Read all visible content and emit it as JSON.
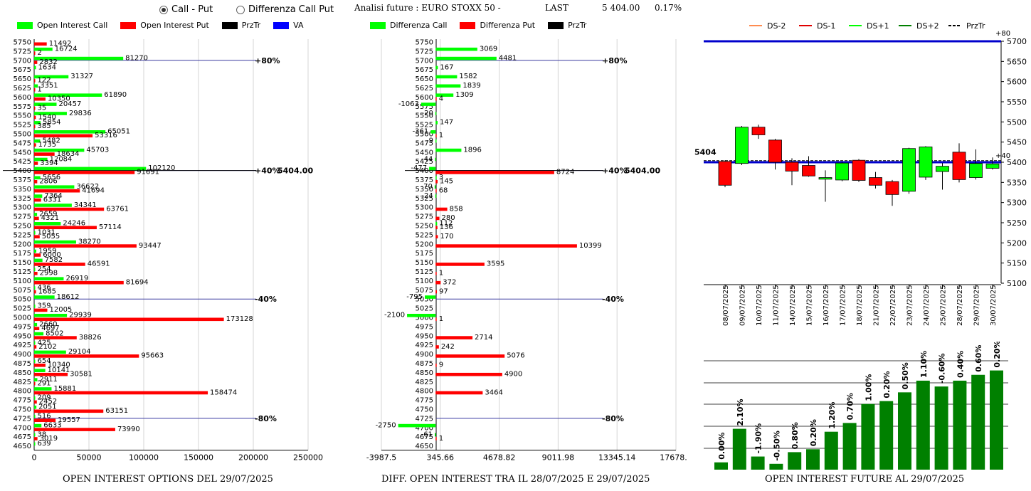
{
  "header": {
    "radio_call_put": "Call - Put",
    "radio_diff": "Differenza Call Put",
    "title": "Analisi future : EURO STOXX 50 -",
    "last_label": "LAST",
    "last_value": "5 404.00",
    "last_change": "0.17%"
  },
  "legend1": {
    "call": "Open Interest Call",
    "put": "Open Interest Put",
    "przTr": "PrzTr",
    "va": "VA"
  },
  "legend2": {
    "call": "Differenza Call",
    "put": "Differenza Put",
    "przTr": "PrzTr"
  },
  "legend3": {
    "ds_2": "DS-2",
    "ds_1": "DS-1",
    "ds1": "DS+1",
    "ds2": "DS+2",
    "przTr": "PrzTr"
  },
  "captions": {
    "c1": "OPEN INTEREST OPTIONS DEL 29/07/2025",
    "c2": "DIFF. OPEN INTEREST TRA IL 28/07/2025 E 29/07/2025",
    "c3": "OPEN INTEREST FUTURE AL 29/07/2025"
  },
  "colors": {
    "call": "#00ff00",
    "put": "#ff0000",
    "przTr": "#000000",
    "va": "#0000ff",
    "bar3": "#008000"
  },
  "chart_data": [
    {
      "type": "bar",
      "orientation": "horizontal",
      "categories": [
        "5750",
        "5725",
        "5700",
        "5675",
        "5650",
        "5625",
        "5600",
        "5575",
        "5550",
        "5525",
        "5500",
        "5475",
        "5450",
        "5425",
        "5400",
        "5375",
        "5350",
        "5325",
        "5300",
        "5275",
        "5250",
        "5225",
        "5200",
        "5175",
        "5150",
        "5125",
        "5100",
        "5075",
        "5050",
        "5025",
        "5000",
        "4975",
        "4950",
        "4925",
        "4900",
        "4875",
        "4850",
        "4825",
        "4800",
        "4775",
        "4750",
        "4725",
        "4700",
        "4675",
        "4650"
      ],
      "series": [
        {
          "name": "Open Interest Call",
          "values": [
            null,
            16724,
            81270,
            1634,
            31327,
            3351,
            61890,
            20457,
            29836,
            5854,
            65051,
            5482,
            45703,
            12084,
            102120,
            5656,
            36622,
            7364,
            34341,
            2659,
            24246,
            1031,
            38270,
            1959,
            7582,
            254,
            26919,
            436,
            18612,
            359,
            29939,
            2660,
            8502,
            425,
            29104,
            654,
            10141,
            2911,
            15881,
            209,
            2051,
            516,
            6633,
            38,
            639
          ]
        },
        {
          "name": "Open Interest Put",
          "values": [
            11492,
            2,
            2832,
            null,
            122,
            1,
            10350,
            35,
            1540,
            385,
            53316,
            1735,
            18634,
            3394,
            91691,
            2806,
            41694,
            6331,
            63761,
            4321,
            57114,
            5055,
            93447,
            6000,
            46591,
            2998,
            81694,
            1685,
            null,
            12005,
            173128,
            4697,
            38826,
            2102,
            95663,
            10340,
            30581,
            291,
            158474,
            2452,
            63151,
            19557,
            73990,
            3019,
            null
          ]
        }
      ],
      "ref_lines": [
        {
          "label": "+80%",
          "level": "5700"
        },
        {
          "label": "+40%",
          "level": "5400"
        },
        {
          "label": "-40%",
          "level": "5050"
        },
        {
          "label": "-80%",
          "level": "4725"
        }
      ],
      "price_label": "5404.00",
      "xticks": [
        "0",
        "50000",
        "100000",
        "150000",
        "200000",
        "250000"
      ],
      "xlim": [
        0,
        250000
      ]
    },
    {
      "type": "bar",
      "orientation": "horizontal",
      "categories": [
        "5750",
        "5725",
        "5700",
        "5675",
        "5650",
        "5625",
        "5600",
        "5575",
        "5550",
        "5525",
        "5500",
        "5475",
        "5450",
        "5425",
        "5400",
        "5375",
        "5350",
        "5325",
        "5300",
        "5275",
        "5250",
        "5225",
        "5200",
        "5175",
        "5150",
        "5125",
        "5100",
        "5075",
        "5050",
        "5025",
        "5000",
        "4975",
        "4950",
        "4925",
        "4900",
        "4875",
        "4850",
        "4825",
        "4800",
        "4775",
        "4750",
        "4725",
        "4700",
        "4675",
        "4650"
      ],
      "series": [
        {
          "name": "Differenza Call",
          "values": [
            null,
            3069,
            4481,
            167,
            1582,
            1839,
            1309,
            -1063,
            -20,
            147,
            -361,
            -9,
            1896,
            -44,
            -477,
            3,
            -70,
            -24,
            null,
            null,
            112,
            null,
            null,
            null,
            null,
            null,
            null,
            null,
            -795,
            null,
            -2100,
            null,
            null,
            null,
            null,
            null,
            null,
            null,
            null,
            null,
            null,
            null,
            -2750,
            -61,
            null
          ]
        },
        {
          "name": "Differenza Put",
          "values": [
            null,
            null,
            null,
            null,
            null,
            null,
            4,
            null,
            null,
            null,
            1,
            null,
            null,
            null,
            8724,
            145,
            68,
            null,
            858,
            280,
            136,
            170,
            10399,
            null,
            3595,
            1,
            372,
            97,
            null,
            null,
            1,
            null,
            2714,
            242,
            5076,
            9,
            4900,
            null,
            3464,
            null,
            null,
            null,
            null,
            1,
            null
          ]
        }
      ],
      "ref_lines": [
        {
          "label": "+80%",
          "level": "5700"
        },
        {
          "label": "+40%",
          "level": "5400"
        },
        {
          "label": "-40%",
          "level": "5050"
        },
        {
          "label": "-80%",
          "level": "4725"
        }
      ],
      "price_label": "5404.00",
      "xticks": [
        "-3987.5",
        "345.66",
        "4678.82",
        "9011.98",
        "13345.14",
        "17678.3"
      ],
      "xlim": [
        -3987.5,
        17678.3
      ]
    },
    {
      "type": "candlestick",
      "dates": [
        "08/07/2025",
        "09/07/2025",
        "10/07/2025",
        "11/07/2025",
        "14/07/2025",
        "15/07/2025",
        "16/07/2025",
        "17/07/2025",
        "18/07/2025",
        "21/07/2025",
        "22/07/2025",
        "23/07/2025",
        "24/07/2025",
        "25/07/2025",
        "28/07/2025",
        "29/07/2025",
        "30/07/2025"
      ],
      "ohlc": [
        [
          5402,
          5405,
          5338,
          5343
        ],
        [
          5397,
          5490,
          5393,
          5487
        ],
        [
          5487,
          5493,
          5458,
          5468
        ],
        [
          5455,
          5458,
          5382,
          5400
        ],
        [
          5400,
          5410,
          5343,
          5378
        ],
        [
          5392,
          5415,
          5364,
          5366
        ],
        [
          5358,
          5380,
          5302,
          5362
        ],
        [
          5356,
          5400,
          5353,
          5398
        ],
        [
          5405,
          5408,
          5351,
          5355
        ],
        [
          5362,
          5376,
          5335,
          5343
        ],
        [
          5352,
          5356,
          5292,
          5320
        ],
        [
          5328,
          5436,
          5322,
          5434
        ],
        [
          5363,
          5440,
          5356,
          5438
        ],
        [
          5377,
          5398,
          5332,
          5390
        ],
        [
          5425,
          5447,
          5350,
          5357
        ],
        [
          5362,
          5432,
          5357,
          5397
        ],
        [
          5385,
          5412,
          5382,
          5396
        ]
      ],
      "last_label": "5404",
      "top_label": "+80",
      "mid_label": "+40",
      "lines": [
        {
          "name": "DS-2",
          "color": "#ff8c50"
        },
        {
          "name": "DS-1",
          "color": "#e00000"
        },
        {
          "name": "DS+1",
          "color": "#00ff00"
        },
        {
          "name": "DS+2",
          "color": "#008000"
        },
        {
          "name": "PrzTr",
          "color": "#000000"
        }
      ],
      "yticks": [
        "5700",
        "5650",
        "5600",
        "5550",
        "5500",
        "5450",
        "5400",
        "5350",
        "5300",
        "5250",
        "5200",
        "5150",
        "5100"
      ],
      "ylim": [
        5100,
        5700
      ]
    },
    {
      "type": "bar",
      "values": [
        5,
        28,
        9,
        4,
        12,
        14,
        26,
        32,
        45,
        47,
        53,
        61,
        57,
        61,
        65,
        68
      ],
      "labels": [
        "0.00%",
        "2.10%",
        "-1.90%",
        "-0.50%",
        "0.80%",
        "0.20%",
        "1.20%",
        "0.70%",
        "1.00%",
        "0.20%",
        "0.50%",
        "1.10%",
        "-0.60%",
        "0.40%",
        "0.60%",
        "0.20%"
      ]
    }
  ]
}
